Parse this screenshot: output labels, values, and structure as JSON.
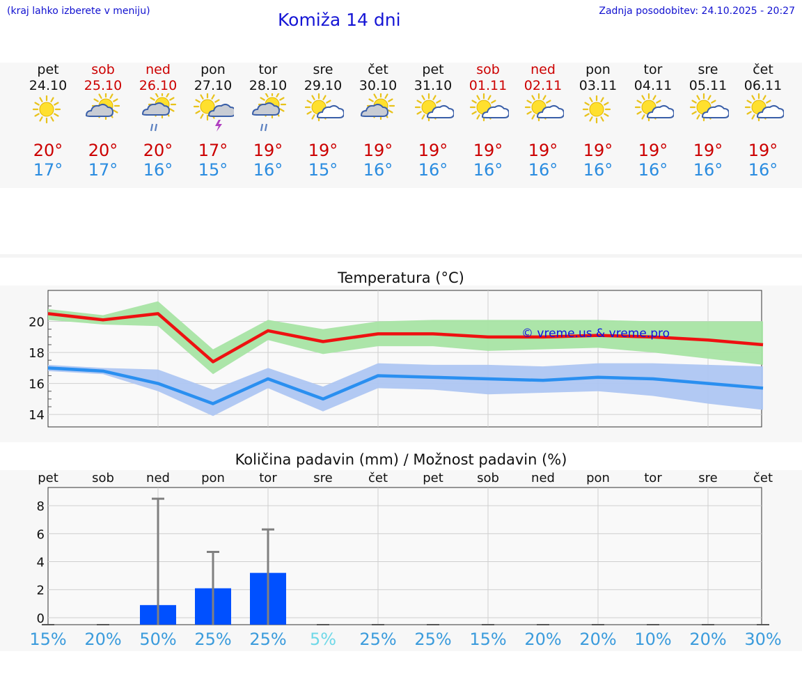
{
  "header": {
    "menu_hint": "(kraj lahko izberete v meniju)",
    "title": "Komiža 14 dni",
    "updated": "Zadnja posodobitev: 24.10.2025 - 20:27"
  },
  "days": [
    {
      "name": "pet",
      "date": "24.10",
      "weekend": false,
      "icon": "sunny-icon",
      "tmax": "20°",
      "tmin": "17°"
    },
    {
      "name": "sob",
      "date": "25.10",
      "weekend": true,
      "icon": "cloudy-sun-icon",
      "tmax": "20°",
      "tmin": "17°"
    },
    {
      "name": "ned",
      "date": "26.10",
      "weekend": true,
      "icon": "rain-cloud-sun-icon",
      "tmax": "20°",
      "tmin": "16°"
    },
    {
      "name": "pon",
      "date": "27.10",
      "weekend": false,
      "icon": "thunder-sun-icon",
      "tmax": "17°",
      "tmin": "15°"
    },
    {
      "name": "tor",
      "date": "28.10",
      "weekend": false,
      "icon": "rain-cloud-sun-icon",
      "tmax": "19°",
      "tmin": "16°"
    },
    {
      "name": "sre",
      "date": "29.10",
      "weekend": false,
      "icon": "sun-cloud-icon",
      "tmax": "19°",
      "tmin": "15°"
    },
    {
      "name": "čet",
      "date": "30.10",
      "weekend": false,
      "icon": "cloudy-sun-icon",
      "tmax": "19°",
      "tmin": "16°"
    },
    {
      "name": "pet",
      "date": "31.10",
      "weekend": false,
      "icon": "sun-cloud-icon",
      "tmax": "19°",
      "tmin": "16°"
    },
    {
      "name": "sob",
      "date": "01.11",
      "weekend": true,
      "icon": "sun-cloud-icon",
      "tmax": "19°",
      "tmin": "16°"
    },
    {
      "name": "ned",
      "date": "02.11",
      "weekend": true,
      "icon": "sun-cloud-icon",
      "tmax": "19°",
      "tmin": "16°"
    },
    {
      "name": "pon",
      "date": "03.11",
      "weekend": false,
      "icon": "sunny-icon",
      "tmax": "19°",
      "tmin": "16°"
    },
    {
      "name": "tor",
      "date": "04.11",
      "weekend": false,
      "icon": "sun-cloud-icon",
      "tmax": "19°",
      "tmin": "16°"
    },
    {
      "name": "sre",
      "date": "05.11",
      "weekend": false,
      "icon": "sun-cloud-icon",
      "tmax": "19°",
      "tmin": "16°"
    },
    {
      "name": "čet",
      "date": "06.11",
      "weekend": false,
      "icon": "sun-cloud-icon",
      "tmax": "19°",
      "tmin": "16°"
    }
  ],
  "colors": {
    "max": "#ee1111",
    "min": "#2a8ff0",
    "max_band": "#a8e4a4",
    "min_band": "#aec6f2",
    "bar": "#0050ff",
    "whisker": "#808080",
    "watermark": "#1010e0"
  },
  "chart_data": [
    {
      "type": "line",
      "title": "Temperatura (°C)",
      "x": [
        "pet",
        "sob",
        "ned",
        "pon",
        "tor",
        "sre",
        "čet",
        "pet",
        "sob",
        "ned",
        "pon",
        "tor",
        "sre",
        "čet"
      ],
      "ylim": [
        13.2,
        22
      ],
      "yticks": [
        14,
        16,
        18,
        20
      ],
      "watermark": "© vreme.us & vreme.pro",
      "series": [
        {
          "values": [
            20.5,
            20.1,
            20.5,
            17.4,
            19.4,
            18.7,
            19.2,
            19.2,
            19.0,
            19.0,
            19.1,
            19.0,
            18.8,
            18.5
          ],
          "upper": [
            20.8,
            20.4,
            21.3,
            18.2,
            20.1,
            19.5,
            20.0,
            20.1,
            20.1,
            20.1,
            20.1,
            20.0,
            20.0,
            20.0
          ],
          "lower": [
            20.1,
            19.8,
            19.7,
            16.6,
            18.8,
            17.9,
            18.4,
            18.4,
            18.1,
            18.2,
            18.3,
            18.0,
            17.6,
            17.2
          ]
        },
        {
          "values": [
            17.0,
            16.8,
            16.0,
            14.7,
            16.3,
            15.0,
            16.5,
            16.4,
            16.3,
            16.2,
            16.4,
            16.3,
            16.0,
            15.7
          ],
          "upper": [
            17.2,
            17.0,
            16.9,
            15.6,
            17.0,
            15.8,
            17.3,
            17.2,
            17.2,
            17.1,
            17.3,
            17.3,
            17.2,
            17.1
          ],
          "lower": [
            16.8,
            16.6,
            15.5,
            13.9,
            15.7,
            14.2,
            15.7,
            15.6,
            15.3,
            15.4,
            15.5,
            15.2,
            14.7,
            14.3
          ]
        }
      ]
    },
    {
      "type": "bar",
      "title": "Količina padavin (mm) / Možnost padavin (%)",
      "categories": [
        "pet",
        "sob",
        "ned",
        "pon",
        "tor",
        "sre",
        "čet",
        "pet",
        "sob",
        "ned",
        "pon",
        "tor",
        "sre",
        "čet"
      ],
      "values": [
        0,
        0,
        0.9,
        2.1,
        3.2,
        0,
        0,
        0,
        0,
        0,
        0,
        0,
        0,
        0
      ],
      "max_values": [
        0,
        0,
        8.5,
        4.7,
        6.3,
        0,
        0,
        0,
        0,
        0,
        0,
        0,
        0,
        0
      ],
      "ylim": [
        -0.5,
        9.3
      ],
      "yticks": [
        0,
        2,
        4,
        6,
        8
      ],
      "probability": [
        "15%",
        "20%",
        "50%",
        "25%",
        "25%",
        "5%",
        "25%",
        "25%",
        "15%",
        "20%",
        "20%",
        "10%",
        "20%",
        "30%"
      ],
      "probability_colors": [
        "#3a9bdc",
        "#3a9bdc",
        "#3a9bdc",
        "#3a9bdc",
        "#3a9bdc",
        "#6fd8e8",
        "#3a9bdc",
        "#3a9bdc",
        "#3a9bdc",
        "#3a9bdc",
        "#3a9bdc",
        "#3a9bdc",
        "#3a9bdc",
        "#3a9bdc"
      ]
    }
  ]
}
